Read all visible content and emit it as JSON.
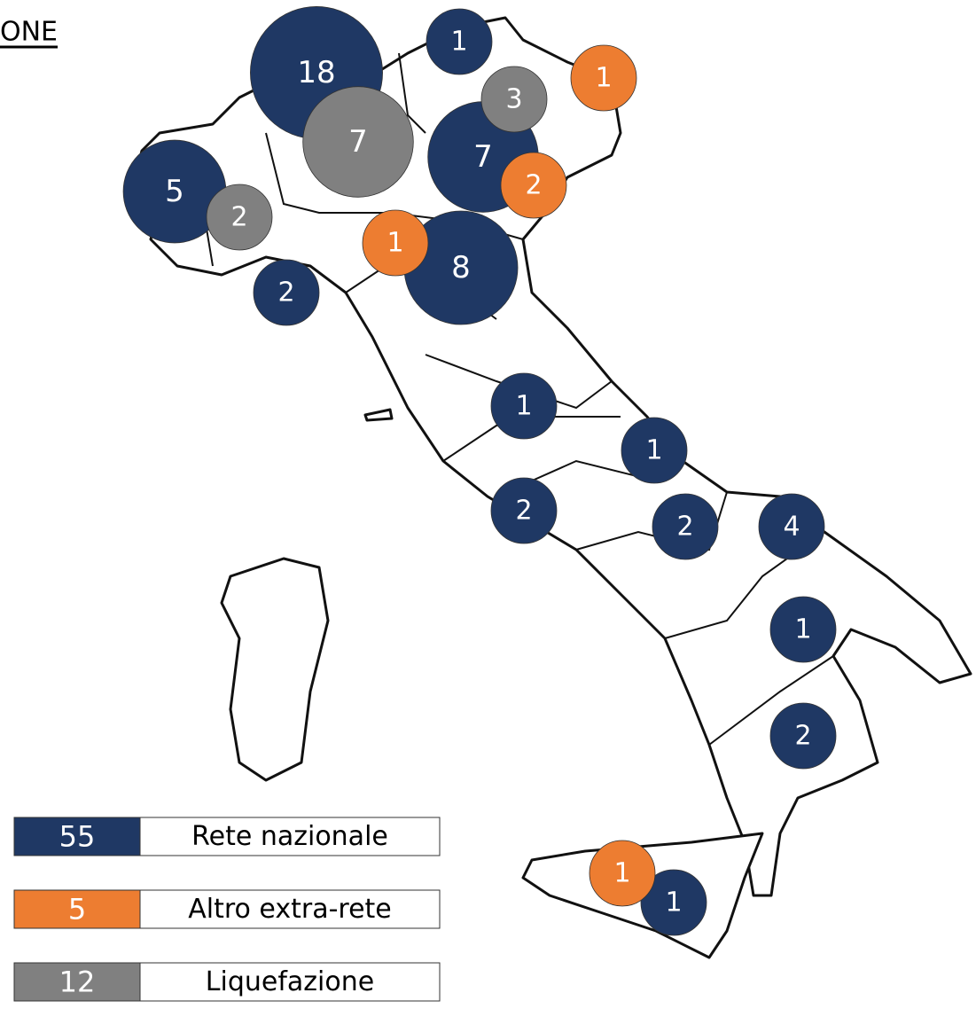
{
  "title": "ONE",
  "series": [
    {
      "name": "Rete nazionale",
      "total": 55,
      "color": "#1f3864"
    },
    {
      "name": "Altro extra-rete",
      "total": 5,
      "color": "#ed7d31"
    },
    {
      "name": "Liquefazione",
      "total": 12,
      "color": "#808080"
    }
  ],
  "bubbles": [
    {
      "series": 0,
      "value": 18
    },
    {
      "series": 0,
      "value": 1
    },
    {
      "series": 0,
      "value": 7
    },
    {
      "series": 0,
      "value": 5
    },
    {
      "series": 0,
      "value": 8
    },
    {
      "series": 0,
      "value": 2
    },
    {
      "series": 0,
      "value": 1
    },
    {
      "series": 0,
      "value": 1
    },
    {
      "series": 0,
      "value": 2
    },
    {
      "series": 0,
      "value": 2
    },
    {
      "series": 0,
      "value": 4
    },
    {
      "series": 0,
      "value": 1
    },
    {
      "series": 0,
      "value": 2
    },
    {
      "series": 0,
      "value": 1
    },
    {
      "series": 1,
      "value": 1
    },
    {
      "series": 1,
      "value": 2
    },
    {
      "series": 1,
      "value": 1
    },
    {
      "series": 1,
      "value": 1
    },
    {
      "series": 2,
      "value": 3
    },
    {
      "series": 2,
      "value": 7
    },
    {
      "series": 2,
      "value": 2
    }
  ]
}
